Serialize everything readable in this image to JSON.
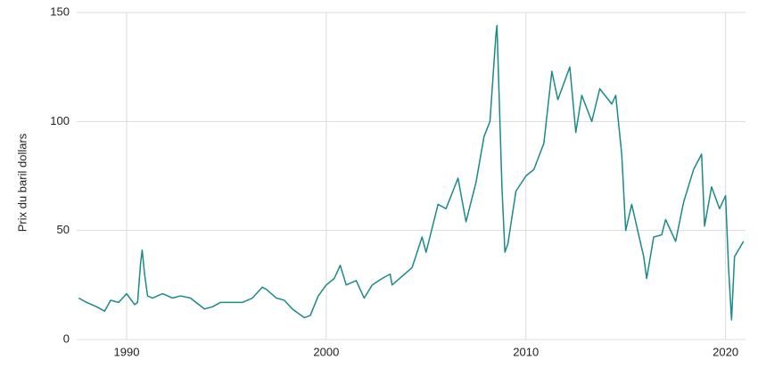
{
  "chart_data": {
    "type": "line",
    "y_label": "Prix du baril dollars",
    "x": [
      1987.6,
      1988.0,
      1988.5,
      1988.9,
      1989.2,
      1989.6,
      1990.0,
      1990.4,
      1990.55,
      1990.7,
      1990.78,
      1990.9,
      1991.05,
      1991.3,
      1991.8,
      1992.3,
      1992.7,
      1993.2,
      1993.9,
      1994.3,
      1994.7,
      1995.2,
      1995.8,
      1996.3,
      1996.8,
      1997.0,
      1997.5,
      1997.9,
      1998.3,
      1998.9,
      1999.2,
      1999.6,
      2000.0,
      2000.4,
      2000.7,
      2001.0,
      2001.5,
      2001.9,
      2002.3,
      2002.8,
      2003.2,
      2003.3,
      2003.8,
      2004.3,
      2004.8,
      2005.0,
      2005.6,
      2006.0,
      2006.6,
      2007.0,
      2007.5,
      2007.9,
      2008.2,
      2008.5,
      2008.55,
      2008.8,
      2008.95,
      2009.1,
      2009.5,
      2010.0,
      2010.4,
      2010.9,
      2011.3,
      2011.6,
      2012.2,
      2012.5,
      2012.8,
      2013.3,
      2013.7,
      2014.3,
      2014.5,
      2014.8,
      2015.0,
      2015.3,
      2015.6,
      2015.9,
      2016.05,
      2016.4,
      2016.8,
      2017.0,
      2017.5,
      2017.9,
      2018.4,
      2018.8,
      2018.95,
      2019.3,
      2019.7,
      2020.0,
      2020.15,
      2020.3,
      2020.45,
      2020.9
    ],
    "series": [
      {
        "color": "#1a8a8a",
        "values": [
          19,
          17,
          15,
          13,
          18,
          17,
          21,
          16,
          17,
          35,
          41,
          30,
          20,
          19,
          21,
          19,
          20,
          19,
          14,
          15,
          17,
          17,
          17,
          19,
          24,
          23,
          19,
          18,
          14,
          10,
          11,
          20,
          25,
          28,
          34,
          25,
          27,
          19,
          25,
          28,
          30,
          25,
          29,
          33,
          47,
          40,
          62,
          60,
          74,
          54,
          72,
          93,
          100,
          140,
          144,
          70,
          40,
          44,
          68,
          75,
          78,
          90,
          123,
          110,
          125,
          95,
          112,
          100,
          115,
          108,
          112,
          85,
          50,
          62,
          50,
          38,
          28,
          47,
          48,
          55,
          45,
          63,
          78,
          85,
          52,
          70,
          60,
          66,
          33,
          9,
          38,
          45
        ]
      }
    ],
    "xlim": [
      1987.5,
      2021
    ],
    "xticks": [
      1990,
      2000,
      2010,
      2020
    ],
    "ylim": [
      0,
      150
    ],
    "yticks": [
      0,
      50,
      100,
      150
    ],
    "grid": true
  }
}
